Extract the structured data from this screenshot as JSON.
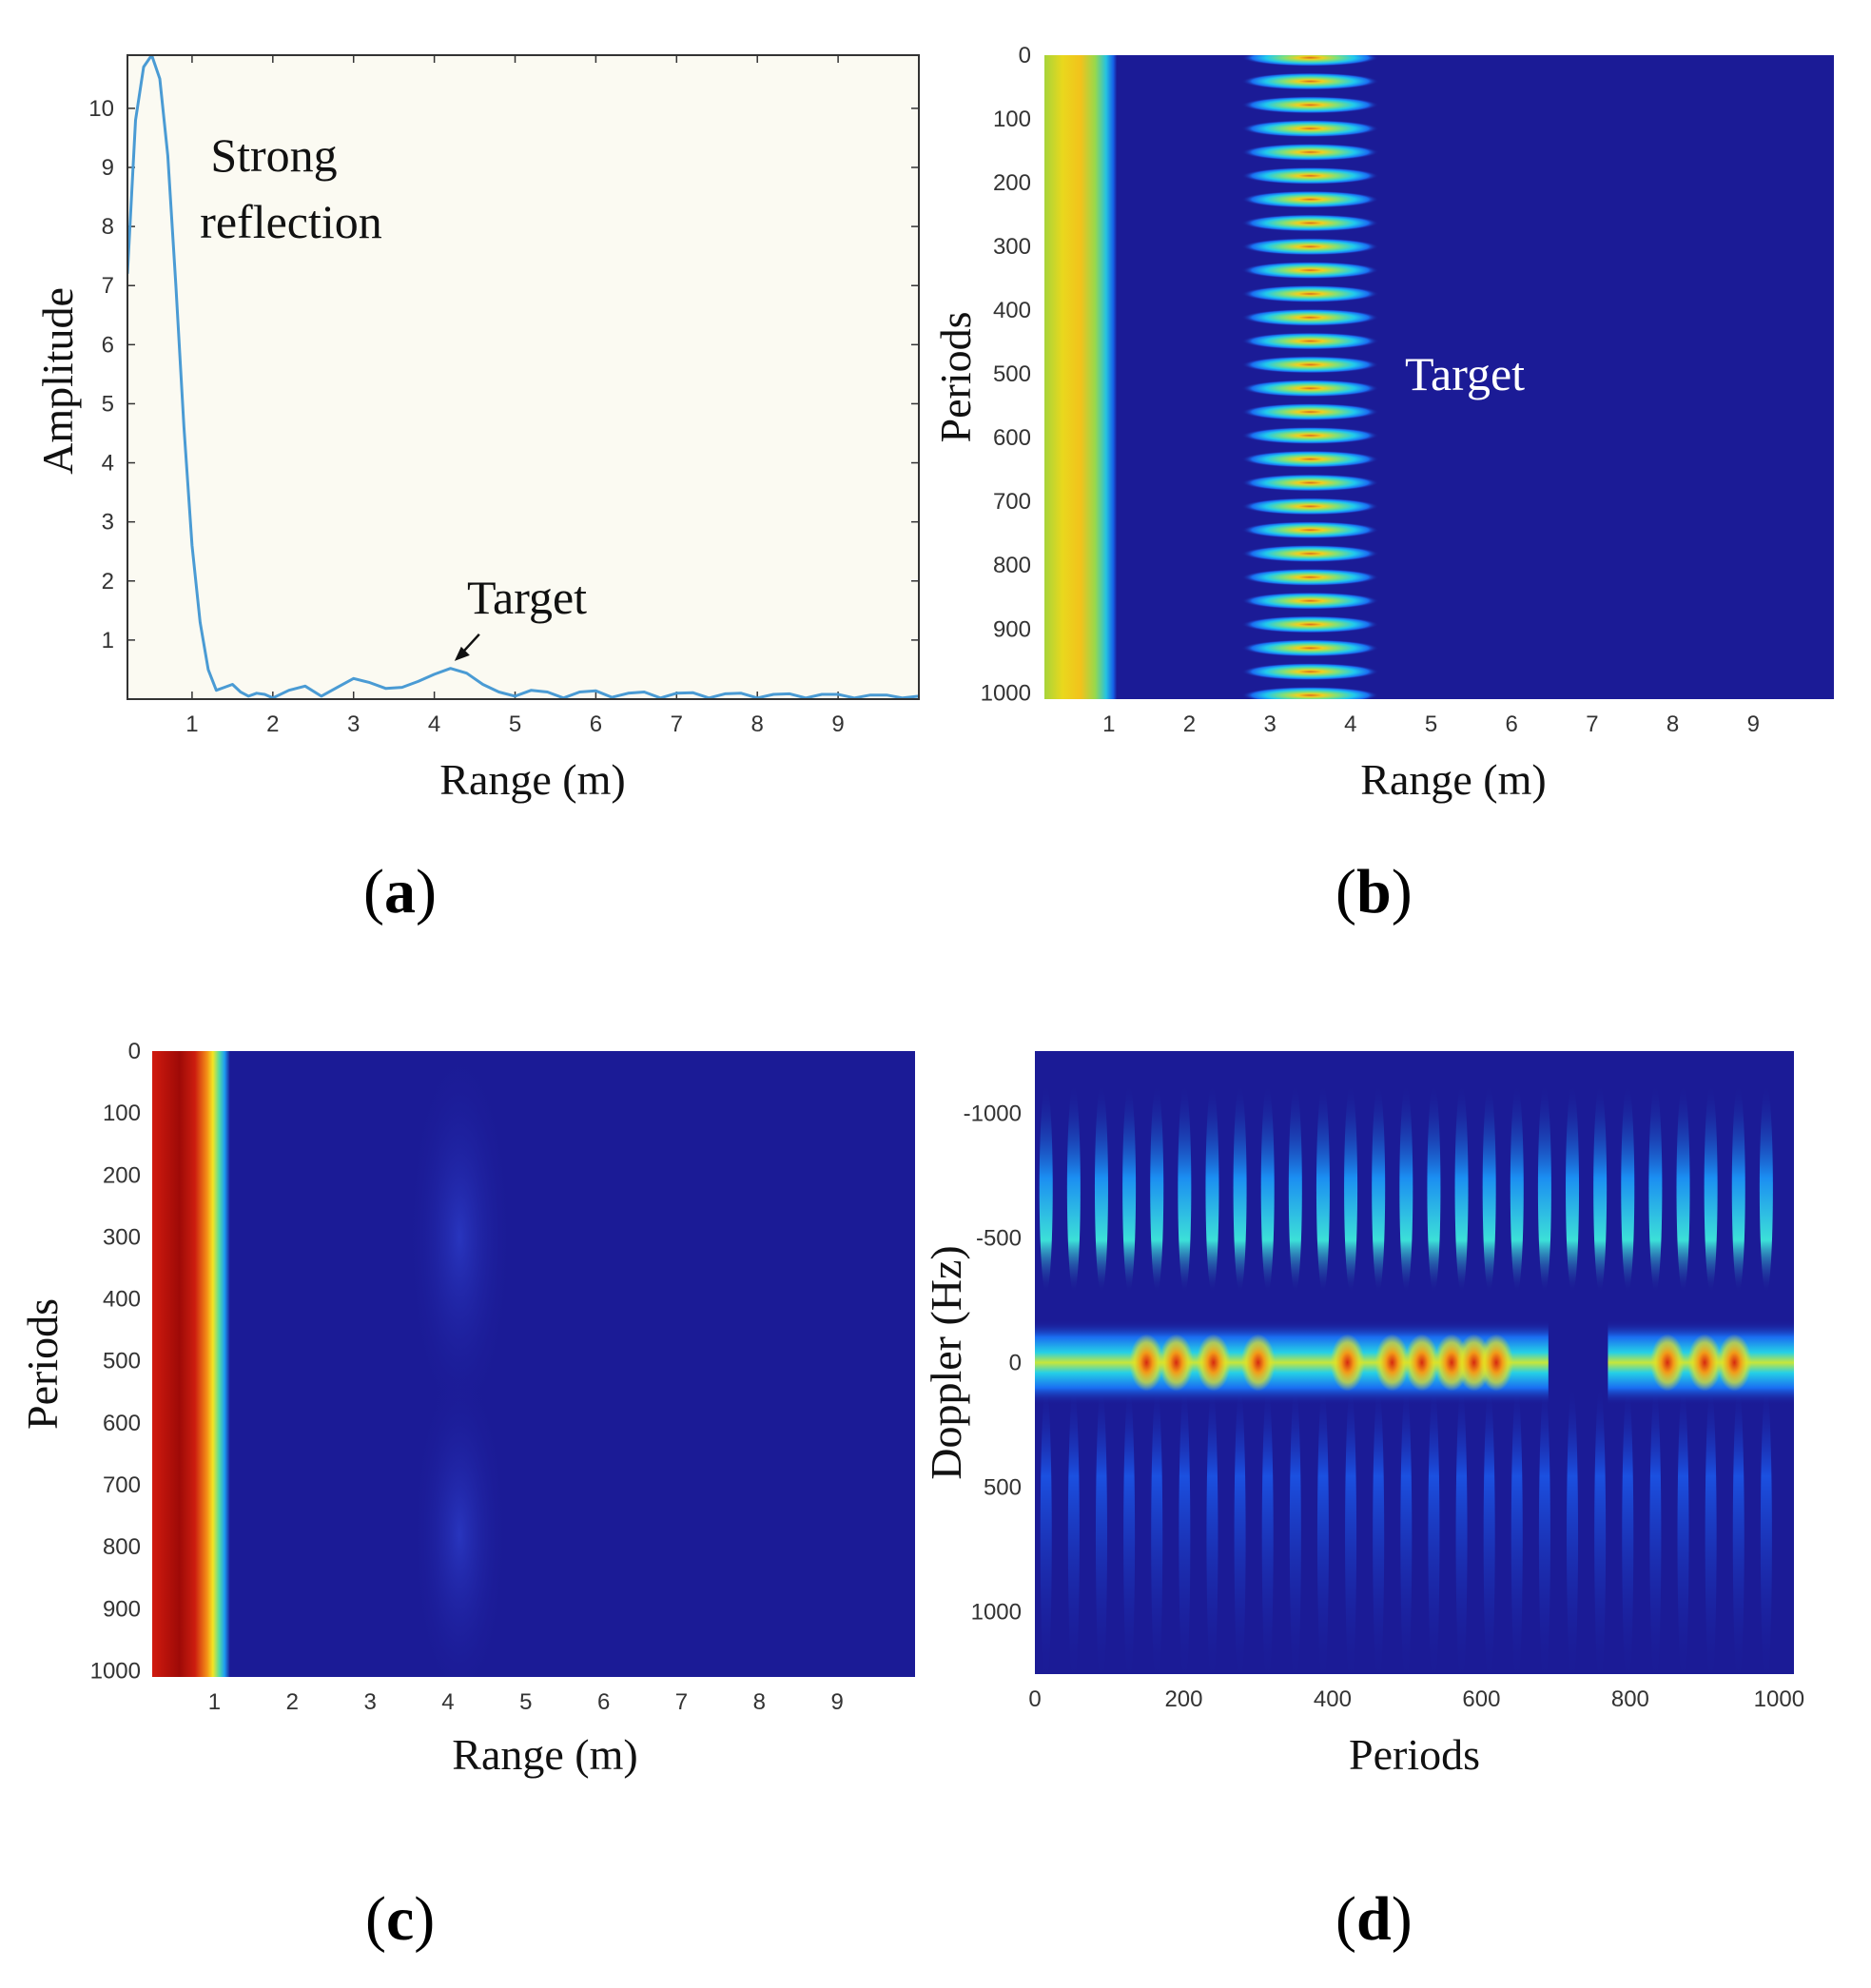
{
  "chart_data": [
    {
      "id": "a",
      "type": "line",
      "panel_label": "a",
      "xlabel": "Range (m)",
      "ylabel": "Amplitude",
      "xlim": [
        0.2,
        10
      ],
      "ylim": [
        0,
        10.9
      ],
      "xticks": [
        1,
        2,
        3,
        4,
        5,
        6,
        7,
        8,
        9
      ],
      "yticks": [
        1,
        2,
        3,
        4,
        5,
        6,
        7,
        8,
        9,
        10
      ],
      "line_color": "#4a9bd4",
      "x": [
        0.2,
        0.3,
        0.4,
        0.5,
        0.6,
        0.7,
        0.8,
        0.9,
        1.0,
        1.1,
        1.2,
        1.3,
        1.4,
        1.5,
        1.6,
        1.7,
        1.8,
        1.9,
        2.0,
        2.2,
        2.4,
        2.6,
        2.8,
        3.0,
        3.2,
        3.4,
        3.6,
        3.8,
        4.0,
        4.2,
        4.4,
        4.6,
        4.8,
        5.0,
        5.2,
        5.4,
        5.6,
        5.8,
        6.0,
        6.2,
        6.4,
        6.6,
        6.8,
        7.0,
        7.2,
        7.4,
        7.6,
        7.8,
        8.0,
        8.2,
        8.4,
        8.6,
        8.8,
        9.0,
        9.2,
        9.4,
        9.6,
        9.8,
        10.0
      ],
      "y": [
        7.2,
        9.8,
        10.7,
        10.9,
        10.5,
        9.2,
        7.0,
        4.6,
        2.6,
        1.3,
        0.5,
        0.15,
        0.2,
        0.25,
        0.12,
        0.05,
        0.1,
        0.08,
        0.02,
        0.15,
        0.22,
        0.05,
        0.2,
        0.35,
        0.28,
        0.18,
        0.2,
        0.3,
        0.42,
        0.52,
        0.44,
        0.25,
        0.12,
        0.05,
        0.15,
        0.12,
        0.02,
        0.12,
        0.14,
        0.03,
        0.1,
        0.12,
        0.02,
        0.1,
        0.11,
        0.02,
        0.09,
        0.1,
        0.02,
        0.08,
        0.09,
        0.02,
        0.08,
        0.08,
        0.02,
        0.07,
        0.07,
        0.02,
        0.05
      ],
      "annotations": [
        {
          "text_lines": [
            "Strong",
            "reflection"
          ]
        },
        {
          "text": "Target",
          "arrow_to": [
            4.25,
            0.55
          ]
        }
      ]
    },
    {
      "id": "b",
      "type": "heatmap",
      "panel_label": "b",
      "xlabel": "Range (m)",
      "ylabel": "Periods",
      "xlim": [
        0.2,
        10
      ],
      "ylim": [
        0,
        1010
      ],
      "xticks": [
        1,
        2,
        3,
        4,
        5,
        6,
        7,
        8,
        9
      ],
      "yticks": [
        0,
        100,
        200,
        300,
        400,
        500,
        600,
        700,
        800,
        900,
        1000
      ],
      "annotation": "Target",
      "features": {
        "strong_band_range_m": [
          0.2,
          1.1
        ],
        "target_center_range_m": 3.5,
        "target_half_width_m": 0.85,
        "target_stripe_count": 28
      }
    },
    {
      "id": "c",
      "type": "heatmap",
      "panel_label": "c",
      "xlabel": "Range (m)",
      "ylabel": "Periods",
      "xlim": [
        0.2,
        10
      ],
      "ylim": [
        0,
        1010
      ],
      "xticks": [
        1,
        2,
        3,
        4,
        5,
        6,
        7,
        8,
        9
      ],
      "yticks": [
        0,
        100,
        200,
        300,
        400,
        500,
        600,
        700,
        800,
        900,
        1000
      ],
      "features": {
        "strong_band_range_m": [
          0.2,
          1.2
        ]
      }
    },
    {
      "id": "d",
      "type": "heatmap",
      "panel_label": "d",
      "xlabel": "Periods",
      "ylabel": "Doppler (Hz)",
      "xlim": [
        0,
        1020
      ],
      "ylim": [
        -1250,
        1250
      ],
      "xticks": [
        0,
        200,
        400,
        600,
        800,
        1000
      ],
      "xtick_labels": [
        "0",
        "200",
        "400",
        "600",
        "800",
        "1000"
      ],
      "yticks": [
        -1000,
        -500,
        0,
        500,
        1000
      ],
      "ytick_labels": [
        "-1000",
        "-500",
        "0",
        "500",
        "1000"
      ],
      "features": {
        "vertical_streak_count": 27,
        "gap_periods": [
          690,
          770
        ]
      }
    }
  ]
}
